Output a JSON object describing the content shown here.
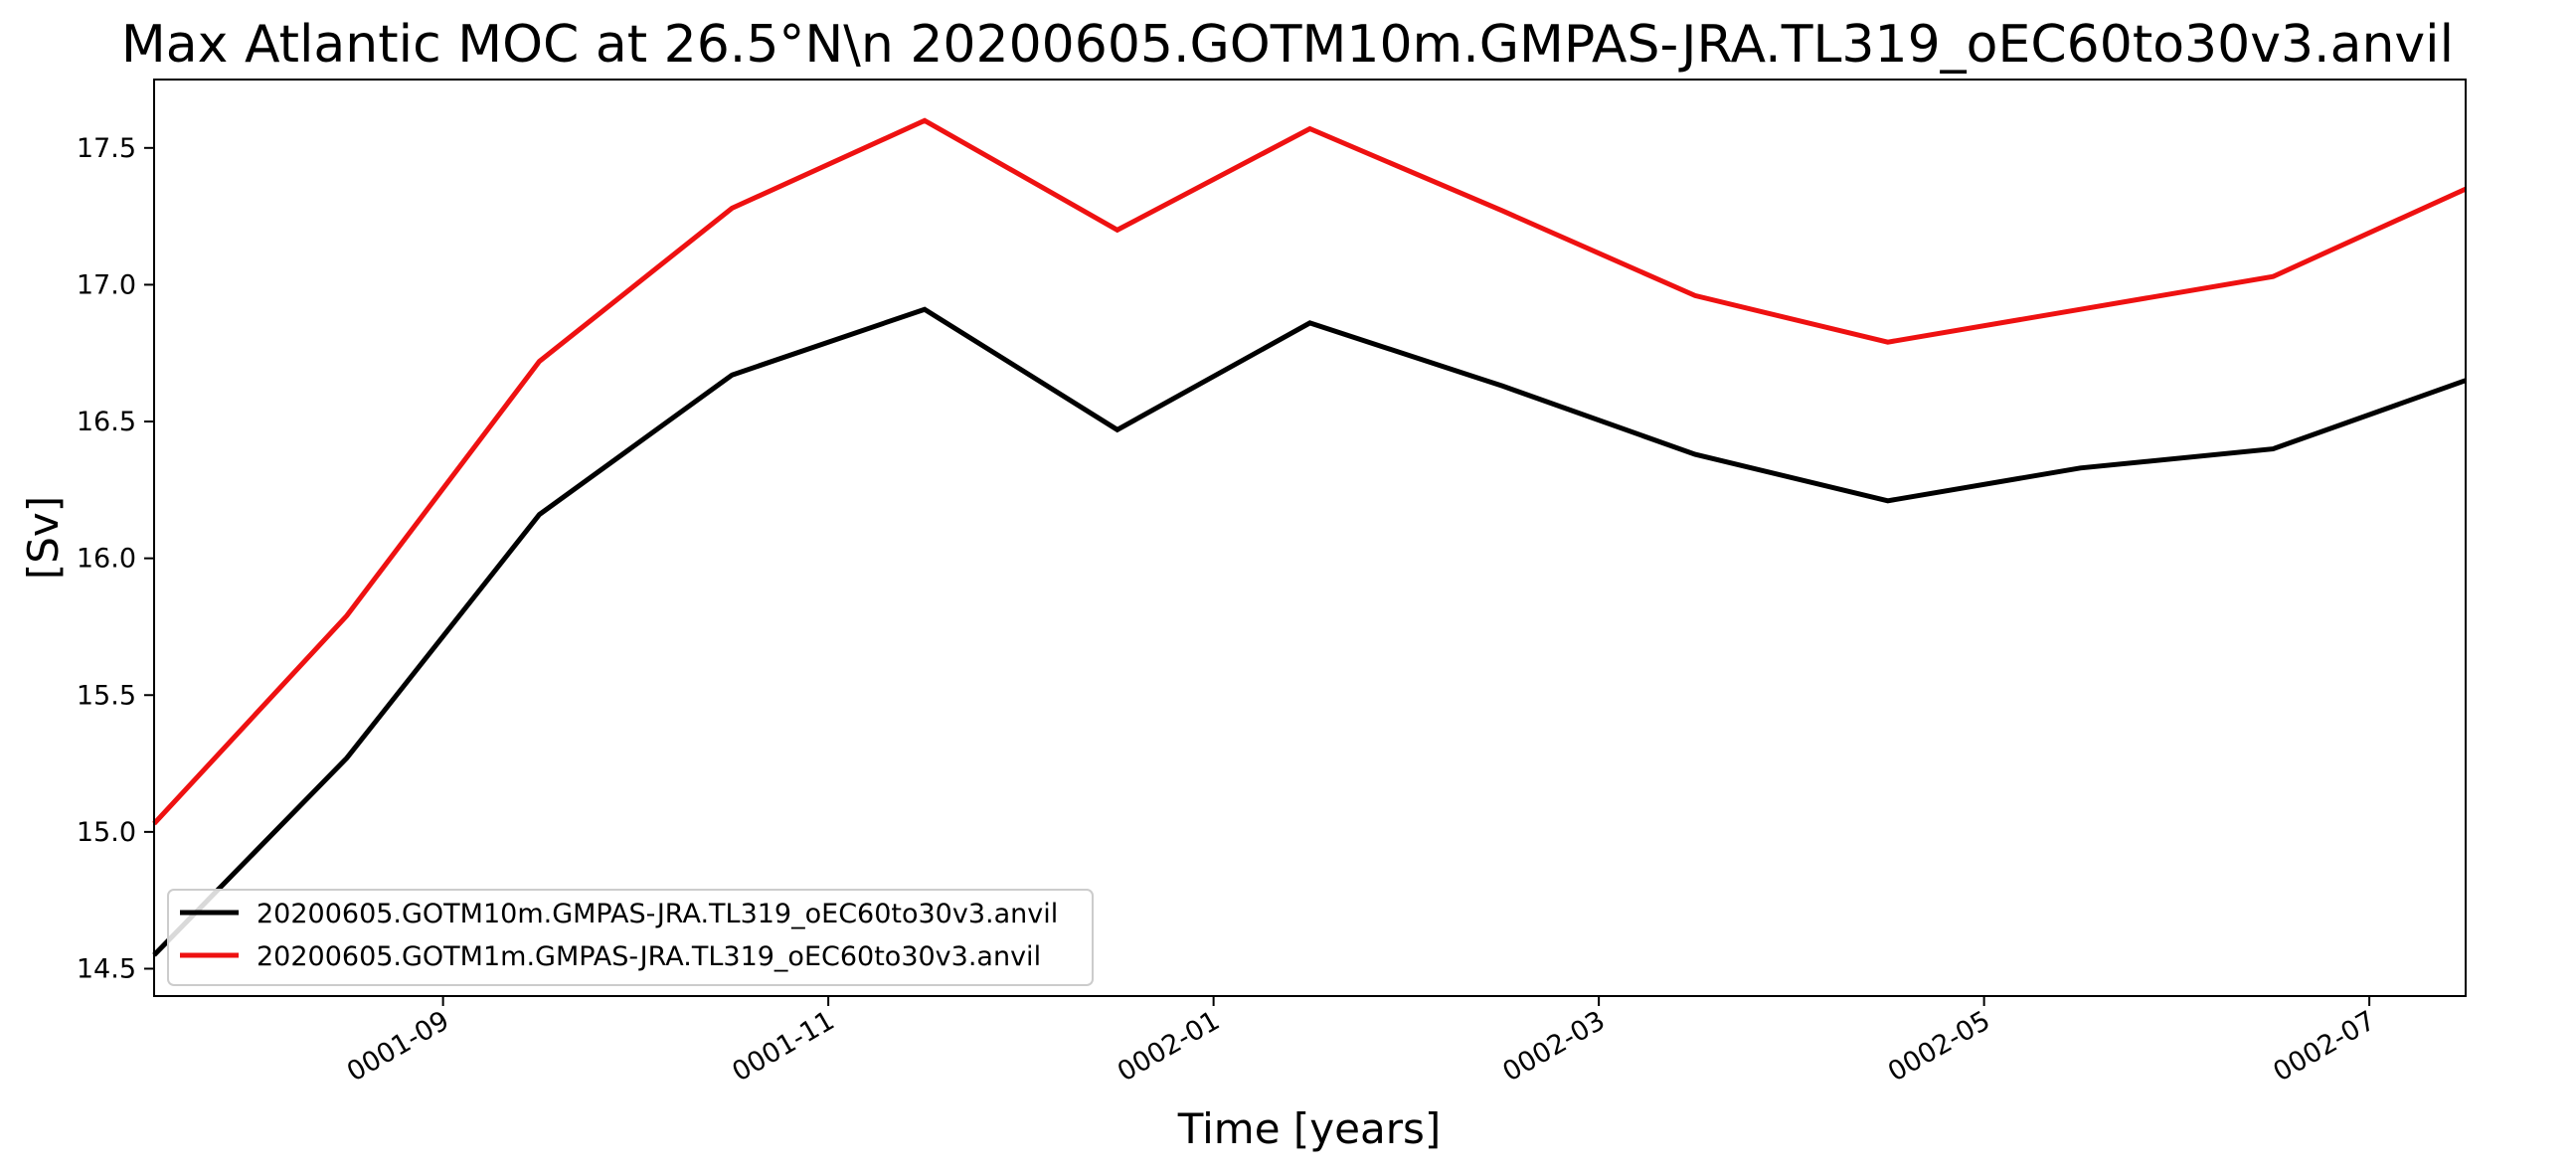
{
  "chart_data": {
    "type": "line",
    "title": "Max Atlantic MOC at 26.5°N\\n 20200605.GOTM10m.GMPAS-JRA.TL319_oEC60to30v3.anvil",
    "xlabel": "Time [years]",
    "ylabel": "[Sv]",
    "x_months_since_start": [
      0,
      1,
      2,
      3,
      4,
      5,
      6,
      7,
      8,
      9,
      10,
      11,
      12
    ],
    "xlim": [
      0,
      12
    ],
    "ylim": [
      14.4,
      17.75
    ],
    "x_ticks": [
      {
        "value": 1.5,
        "label": "0001-09"
      },
      {
        "value": 3.5,
        "label": "0001-11"
      },
      {
        "value": 5.5,
        "label": "0002-01"
      },
      {
        "value": 7.5,
        "label": "0002-03"
      },
      {
        "value": 9.5,
        "label": "0002-05"
      },
      {
        "value": 11.5,
        "label": "0002-07"
      }
    ],
    "y_ticks": [
      {
        "value": 14.5,
        "label": "14.5"
      },
      {
        "value": 15.0,
        "label": "15.0"
      },
      {
        "value": 15.5,
        "label": "15.5"
      },
      {
        "value": 16.0,
        "label": "16.0"
      },
      {
        "value": 16.5,
        "label": "16.5"
      },
      {
        "value": 17.0,
        "label": "17.0"
      },
      {
        "value": 17.5,
        "label": "17.5"
      }
    ],
    "series": [
      {
        "name": "20200605.GOTM10m.GMPAS-JRA.TL319_oEC60to30v3.anvil",
        "color": "#000000",
        "values": [
          14.55,
          15.27,
          16.16,
          16.67,
          16.91,
          16.47,
          16.86,
          16.63,
          16.38,
          16.21,
          16.33,
          16.4,
          16.65
        ]
      },
      {
        "name": "20200605.GOTM1m.GMPAS-JRA.TL319_oEC60to30v3.anvil",
        "color": "#ee1111",
        "values": [
          15.03,
          15.79,
          16.72,
          17.28,
          17.6,
          17.2,
          17.57,
          17.27,
          16.96,
          16.79,
          16.91,
          17.03,
          17.35
        ]
      }
    ],
    "grid": false,
    "legend_position": "lower-left"
  }
}
